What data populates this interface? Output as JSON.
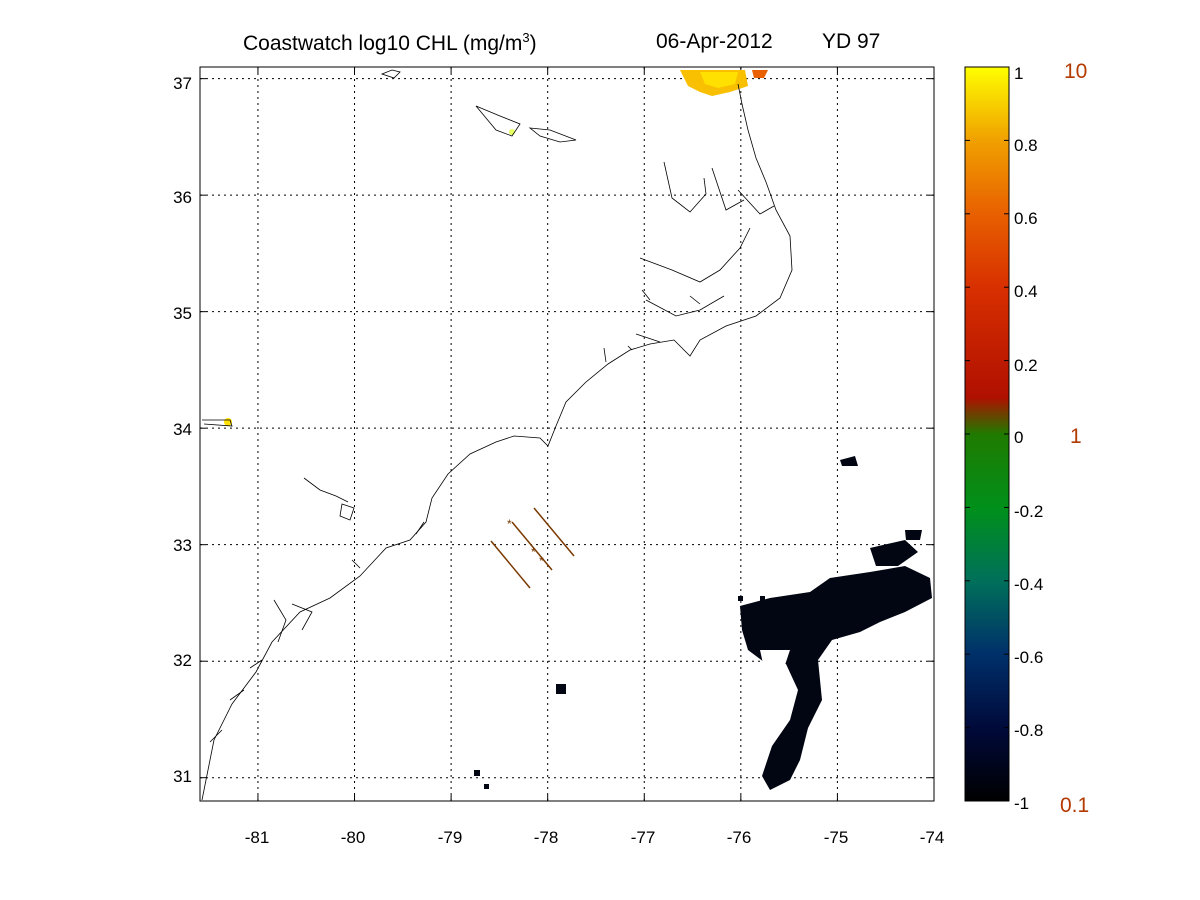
{
  "title": {
    "text": "Coastwatch  log10  CHL (mg/m",
    "sup": "3",
    "close": ")",
    "date": "06-Apr-2012",
    "yd": "YD 97"
  },
  "map": {
    "lon_range": [
      -81.6,
      -74
    ],
    "lat_range": [
      30.8,
      37.1
    ],
    "grid": true,
    "grid_style": "dotted",
    "lon_ticks": [
      "-81",
      "-80",
      "-79",
      "-78",
      "-77",
      "-76",
      "-75",
      "-74"
    ],
    "lat_ticks": [
      "37",
      "36",
      "35",
      "34",
      "33",
      "32",
      "31"
    ]
  },
  "colorbar": {
    "ticks": [
      "1",
      "0.8",
      "0.6",
      "0.4",
      "0.2",
      "0",
      "-0.2",
      "-0.4",
      "-0.6",
      "-0.8",
      "-1"
    ],
    "conc_labels": [
      "10",
      "1",
      "0.1"
    ],
    "colors": [
      "#000000",
      "#000a3a",
      "#00306a",
      "#00705a",
      "#00901a",
      "#207a00",
      "#b01000",
      "#d83000",
      "#e86000",
      "#f09000",
      "#f8c000",
      "#ffff00"
    ]
  },
  "colors": {
    "coast": "#000000",
    "track": "#7a3a00",
    "low_chl": "#020612",
    "high_chl": "#f8c000"
  }
}
